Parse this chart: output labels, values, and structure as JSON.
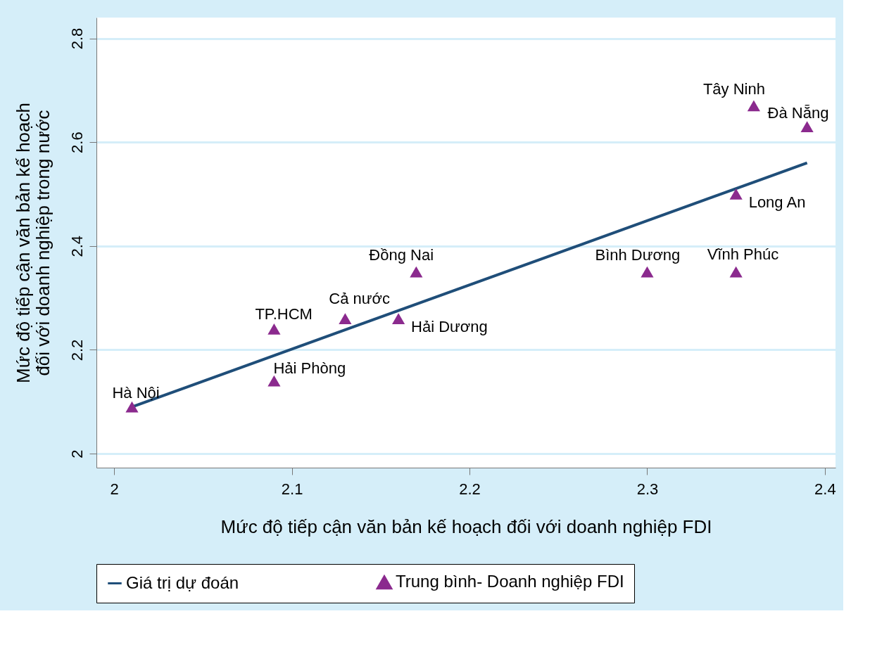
{
  "chart_data": {
    "type": "scatter",
    "xlabel": "Mức độ tiếp cận văn bản kế hoạch đối với doanh nghiệp FDI",
    "ylabel": "Mức độ tiếp cận văn bản kế hoạch đối với doanh nghiệp trong nước",
    "xlim": [
      1.99,
      2.406
    ],
    "xticks": [
      2,
      2.1,
      2.2,
      2.3,
      2.4
    ],
    "ylim": [
      1.973,
      2.84
    ],
    "yticks": [
      2,
      2.2,
      2.4,
      2.6,
      2.8
    ],
    "grid": "y",
    "legend": "bottom",
    "series": [
      {
        "name": "Giá trị dự đoán",
        "type": "line",
        "color": "#1f4e79",
        "line_style": "solid",
        "x": [
          2.01,
          2.39
        ],
        "values": [
          2.09,
          2.56
        ]
      },
      {
        "name": "Trung bình- Doanh nghiệp FDI",
        "type": "scatter",
        "marker": "triangle",
        "color": "#8b2a8e",
        "x": [
          2.01,
          2.09,
          2.09,
          2.13,
          2.16,
          2.17,
          2.3,
          2.35,
          2.35,
          2.36,
          2.39
        ],
        "values": [
          2.09,
          2.14,
          2.24,
          2.26,
          2.26,
          2.35,
          2.35,
          2.35,
          2.5,
          2.67,
          2.63
        ]
      }
    ],
    "annotations": [
      {
        "text": "Hà Nội",
        "x": 2.01,
        "y": 2.09
      },
      {
        "text": "Hải Phòng",
        "x": 2.09,
        "y": 2.14
      },
      {
        "text": "TP.HCM",
        "x": 2.09,
        "y": 2.24
      },
      {
        "text": "Cả nước",
        "x": 2.13,
        "y": 2.26
      },
      {
        "text": "Hải Dương",
        "x": 2.16,
        "y": 2.26
      },
      {
        "text": "Đồng Nai",
        "x": 2.17,
        "y": 2.35
      },
      {
        "text": "Bình Dương",
        "x": 2.3,
        "y": 2.35
      },
      {
        "text": "Vĩnh Phúc",
        "x": 2.35,
        "y": 2.35
      },
      {
        "text": "Long An",
        "x": 2.35,
        "y": 2.5
      },
      {
        "text": "Tây Ninh",
        "x": 2.36,
        "y": 2.67
      },
      {
        "text": "Đà Nẵng",
        "x": 2.39,
        "y": 2.63
      }
    ]
  }
}
